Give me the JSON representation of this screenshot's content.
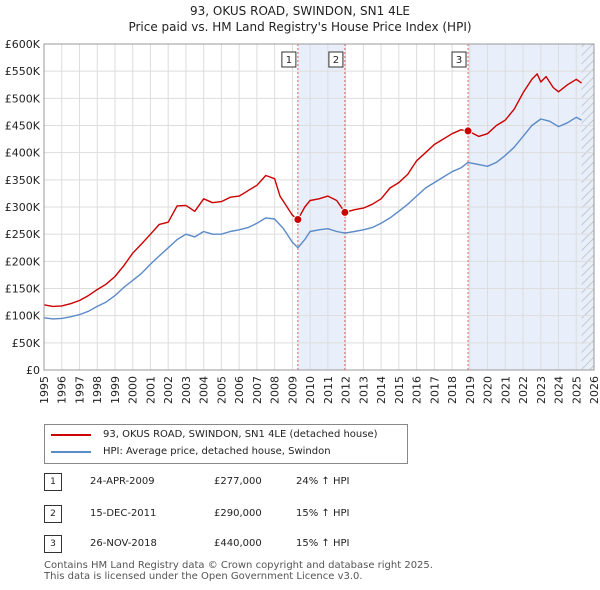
{
  "title_line1": "93, OKUS ROAD, SWINDON, SN1 4LE",
  "title_line2": "Price paid vs. HM Land Registry's House Price Index (HPI)",
  "colors": {
    "price_line": "#cc0000",
    "hpi_line": "#5b8ac9",
    "highlight": "#e8eefa",
    "grid": "#dddddd",
    "marker_line": "#e06060"
  },
  "legend": {
    "price_label": "93, OKUS ROAD, SWINDON, SN1 4LE (detached house)",
    "hpi_label": "HPI: Average price, detached house, Swindon"
  },
  "sales": [
    {
      "num": "1",
      "date": "24-APR-2009",
      "price": "£277,000",
      "hpi": "24% ↑ HPI"
    },
    {
      "num": "2",
      "date": "15-DEC-2011",
      "price": "£290,000",
      "hpi": "15% ↑ HPI"
    },
    {
      "num": "3",
      "date": "26-NOV-2018",
      "price": "£440,000",
      "hpi": "15% ↑ HPI"
    }
  ],
  "footer_line1": "Contains HM Land Registry data © Crown copyright and database right 2025.",
  "footer_line2": "This data is licensed under the Open Government Licence v3.0.",
  "chart_data": {
    "type": "line",
    "xlim": [
      1995,
      2026
    ],
    "ylim": [
      0,
      600000
    ],
    "x_ticks": [
      1995,
      1996,
      1997,
      1998,
      1999,
      2000,
      2001,
      2002,
      2003,
      2004,
      2005,
      2006,
      2007,
      2008,
      2009,
      2010,
      2011,
      2012,
      2013,
      2014,
      2015,
      2016,
      2017,
      2018,
      2019,
      2020,
      2021,
      2022,
      2023,
      2024,
      2025,
      2026
    ],
    "y_ticks": [
      {
        "value": 0,
        "label": "£0"
      },
      {
        "value": 50000,
        "label": "£50K"
      },
      {
        "value": 100000,
        "label": "£100K"
      },
      {
        "value": 150000,
        "label": "£150K"
      },
      {
        "value": 200000,
        "label": "£200K"
      },
      {
        "value": 250000,
        "label": "£250K"
      },
      {
        "value": 300000,
        "label": "£300K"
      },
      {
        "value": 350000,
        "label": "£350K"
      },
      {
        "value": 400000,
        "label": "£400K"
      },
      {
        "value": 450000,
        "label": "£450K"
      },
      {
        "value": 500000,
        "label": "£500K"
      },
      {
        "value": 550000,
        "label": "£550K"
      },
      {
        "value": 600000,
        "label": "£600K"
      }
    ],
    "shaded_ranges": [
      [
        2009.31,
        2011.96
      ],
      [
        2018.9,
        2026
      ]
    ],
    "hatched_from": 2025.3,
    "series": [
      {
        "name": "93, OKUS ROAD, SWINDON, SN1 4LE (detached house)",
        "x": [
          1995,
          1995.5,
          1996,
          1996.5,
          1997,
          1997.5,
          1998,
          1998.5,
          1999,
          1999.5,
          2000,
          2000.5,
          2001,
          2001.5,
          2002,
          2002.5,
          2003,
          2003.5,
          2004,
          2004.5,
          2005,
          2005.5,
          2006,
          2006.5,
          2007,
          2007.5,
          2008,
          2008.3,
          2008.7,
          2009,
          2009.31,
          2009.7,
          2010,
          2010.5,
          2011,
          2011.5,
          2011.96,
          2012.5,
          2013,
          2013.5,
          2014,
          2014.5,
          2015,
          2015.5,
          2016,
          2016.5,
          2017,
          2017.5,
          2018,
          2018.5,
          2018.9,
          2019.5,
          2020,
          2020.5,
          2021,
          2021.5,
          2022,
          2022.5,
          2022.8,
          2023,
          2023.3,
          2023.7,
          2024,
          2024.5,
          2025,
          2025.3
        ],
        "values": [
          120000,
          117000,
          118000,
          122000,
          128000,
          137000,
          148000,
          158000,
          172000,
          192000,
          215000,
          232000,
          250000,
          268000,
          272000,
          302000,
          303000,
          292000,
          315000,
          308000,
          310000,
          318000,
          320000,
          330000,
          340000,
          358000,
          352000,
          320000,
          300000,
          285000,
          277000,
          300000,
          312000,
          315000,
          320000,
          312000,
          290000,
          295000,
          298000,
          305000,
          315000,
          335000,
          345000,
          360000,
          385000,
          400000,
          415000,
          425000,
          435000,
          442000,
          440000,
          430000,
          435000,
          450000,
          460000,
          480000,
          510000,
          535000,
          545000,
          530000,
          540000,
          520000,
          512000,
          525000,
          535000,
          528000
        ]
      },
      {
        "name": "HPI: Average price, detached house, Swindon",
        "x": [
          1995,
          1995.5,
          1996,
          1996.5,
          1997,
          1997.5,
          1998,
          1998.5,
          1999,
          1999.5,
          2000,
          2000.5,
          2001,
          2001.5,
          2002,
          2002.5,
          2003,
          2003.5,
          2004,
          2004.5,
          2005,
          2005.5,
          2006,
          2006.5,
          2007,
          2007.5,
          2008,
          2008.5,
          2009,
          2009.31,
          2009.7,
          2010,
          2010.5,
          2011,
          2011.5,
          2011.96,
          2012.5,
          2013,
          2013.5,
          2014,
          2014.5,
          2015,
          2015.5,
          2016,
          2016.5,
          2017,
          2017.5,
          2018,
          2018.5,
          2018.9,
          2019.5,
          2020,
          2020.5,
          2021,
          2021.5,
          2022,
          2022.5,
          2023,
          2023.5,
          2024,
          2024.5,
          2025,
          2025.3
        ],
        "values": [
          96000,
          94000,
          95000,
          98000,
          102000,
          108000,
          117000,
          125000,
          137000,
          152000,
          165000,
          178000,
          195000,
          210000,
          225000,
          240000,
          250000,
          245000,
          255000,
          250000,
          250000,
          255000,
          258000,
          262000,
          270000,
          280000,
          278000,
          260000,
          235000,
          225000,
          240000,
          255000,
          258000,
          260000,
          255000,
          252000,
          255000,
          258000,
          262000,
          270000,
          280000,
          292000,
          305000,
          320000,
          335000,
          345000,
          355000,
          365000,
          372000,
          382000,
          378000,
          375000,
          382000,
          395000,
          410000,
          430000,
          450000,
          462000,
          458000,
          448000,
          455000,
          465000,
          460000
        ]
      }
    ],
    "sale_markers": [
      {
        "label": "1",
        "x": 2009.31,
        "y": 277000
      },
      {
        "label": "2",
        "x": 2011.96,
        "y": 290000
      },
      {
        "label": "3",
        "x": 2018.9,
        "y": 440000
      }
    ]
  }
}
